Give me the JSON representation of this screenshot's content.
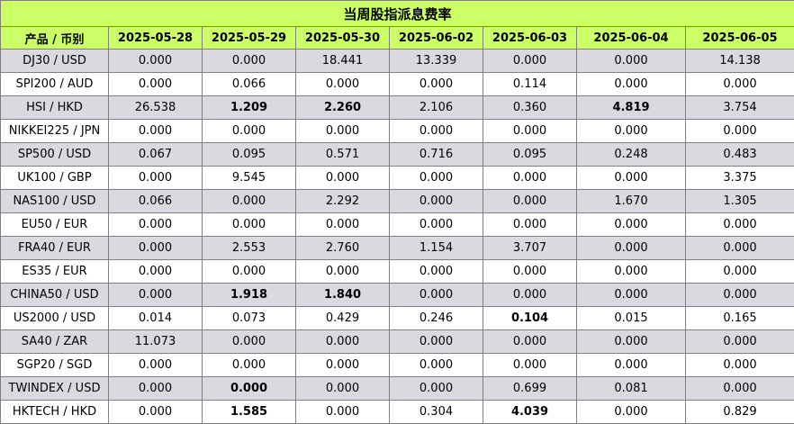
{
  "title": "当周股指派息费率",
  "header": {
    "product_label": "产品 / 币别",
    "dates": [
      "2025-05-28",
      "2025-05-29",
      "2025-05-30",
      "2025-06-02",
      "2025-06-03",
      "2025-06-04",
      "2025-06-05"
    ]
  },
  "rows": [
    {
      "product": "DJ30 / USD",
      "values": [
        "0.000",
        "0.000",
        "18.441",
        "13.339",
        "0.000",
        "0.000",
        "14.138"
      ],
      "bold": []
    },
    {
      "product": "SPI200 / AUD",
      "values": [
        "0.000",
        "0.066",
        "0.000",
        "0.000",
        "0.114",
        "0.000",
        "0.000"
      ],
      "bold": []
    },
    {
      "product": "HSI / HKD",
      "values": [
        "26.538",
        "1.209",
        "2.260",
        "2.106",
        "0.360",
        "4.819",
        "3.754"
      ],
      "bold": [
        1,
        2,
        5
      ]
    },
    {
      "product": "NIKKEI225 / JPN",
      "values": [
        "0.000",
        "0.000",
        "0.000",
        "0.000",
        "0.000",
        "0.000",
        "0.000"
      ],
      "bold": []
    },
    {
      "product": "SP500 / USD",
      "values": [
        "0.067",
        "0.095",
        "0.571",
        "0.716",
        "0.095",
        "0.248",
        "0.483"
      ],
      "bold": []
    },
    {
      "product": "UK100 / GBP",
      "values": [
        "0.000",
        "9.545",
        "0.000",
        "0.000",
        "0.000",
        "0.000",
        "3.375"
      ],
      "bold": []
    },
    {
      "product": "NAS100 / USD",
      "values": [
        "0.066",
        "0.000",
        "2.292",
        "0.000",
        "0.000",
        "1.670",
        "1.305"
      ],
      "bold": []
    },
    {
      "product": "EU50 / EUR",
      "values": [
        "0.000",
        "0.000",
        "0.000",
        "0.000",
        "0.000",
        "0.000",
        "0.000"
      ],
      "bold": []
    },
    {
      "product": "FRA40 / EUR",
      "values": [
        "0.000",
        "2.553",
        "2.760",
        "1.154",
        "3.707",
        "0.000",
        "0.000"
      ],
      "bold": []
    },
    {
      "product": "ES35 / EUR",
      "values": [
        "0.000",
        "0.000",
        "0.000",
        "0.000",
        "0.000",
        "0.000",
        "0.000"
      ],
      "bold": []
    },
    {
      "product": "CHINA50 / USD",
      "values": [
        "0.000",
        "1.918",
        "1.840",
        "0.000",
        "0.000",
        "0.000",
        "0.000"
      ],
      "bold": [
        1,
        2
      ]
    },
    {
      "product": "US2000 / USD",
      "values": [
        "0.014",
        "0.073",
        "0.429",
        "0.246",
        "0.104",
        "0.015",
        "0.165"
      ],
      "bold": [
        4
      ]
    },
    {
      "product": "SA40 / ZAR",
      "values": [
        "11.073",
        "0.000",
        "0.000",
        "0.000",
        "0.000",
        "0.000",
        "0.000"
      ],
      "bold": []
    },
    {
      "product": "SGP20 / SGD",
      "values": [
        "0.000",
        "0.000",
        "0.000",
        "0.000",
        "0.000",
        "0.000",
        "0.000"
      ],
      "bold": []
    },
    {
      "product": "TWINDEX / USD",
      "values": [
        "0.000",
        "0.000",
        "0.000",
        "0.000",
        "0.699",
        "0.081",
        "0.000"
      ],
      "bold": [
        1
      ]
    },
    {
      "product": "HKTECH / HKD",
      "values": [
        "0.000",
        "1.585",
        "0.000",
        "0.304",
        "4.039",
        "0.000",
        "0.829"
      ],
      "bold": [
        1,
        4
      ]
    }
  ]
}
